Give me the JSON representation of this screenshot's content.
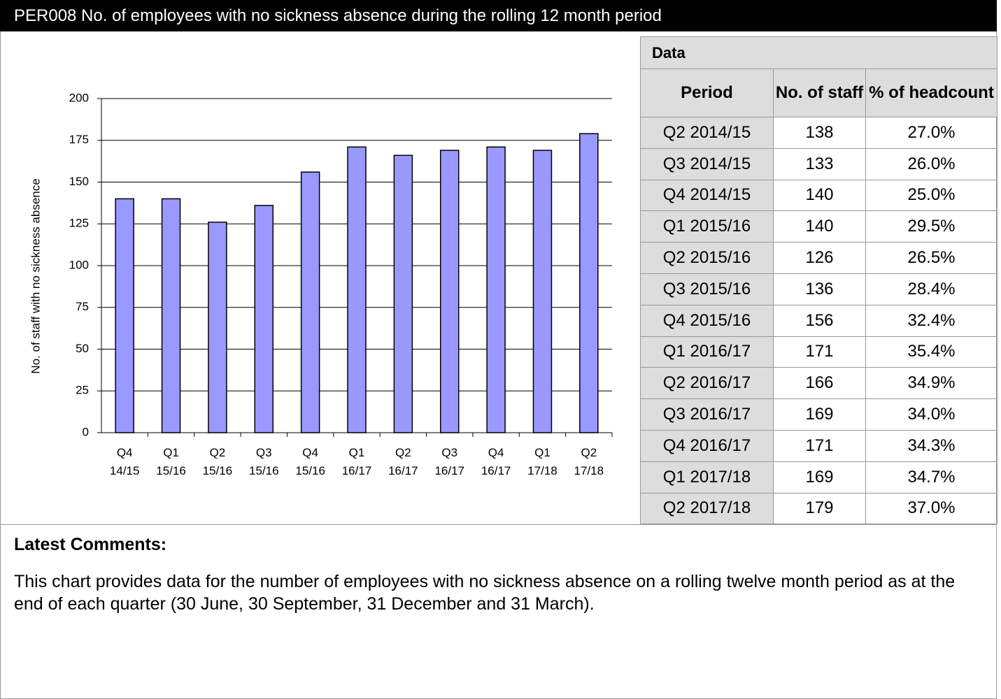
{
  "header": {
    "title": "PER008 No. of employees with no sickness absence during the rolling 12 month period"
  },
  "chart_data": {
    "type": "bar",
    "y_label": "No. of staff with no sickness absence",
    "categories": [
      [
        "Q4",
        "14/15"
      ],
      [
        "Q1",
        "15/16"
      ],
      [
        "Q2",
        "15/16"
      ],
      [
        "Q3",
        "15/16"
      ],
      [
        "Q4",
        "15/16"
      ],
      [
        "Q1",
        "16/17"
      ],
      [
        "Q2",
        "16/17"
      ],
      [
        "Q3",
        "16/17"
      ],
      [
        "Q4",
        "16/17"
      ],
      [
        "Q1",
        "17/18"
      ],
      [
        "Q2",
        "17/18"
      ]
    ],
    "values": [
      140,
      140,
      126,
      136,
      156,
      171,
      166,
      169,
      171,
      169,
      179
    ],
    "color": "#9999ff",
    "ylim": [
      0,
      200
    ],
    "yticks": [
      0,
      25,
      50,
      75,
      100,
      125,
      150,
      175,
      200
    ],
    "grid": true
  },
  "table": {
    "title": "Data",
    "headers": [
      "Period",
      "No. of staff",
      "% of headcount"
    ],
    "rows": [
      [
        "Q2 2014/15",
        138,
        "27.0%"
      ],
      [
        "Q3 2014/15",
        133,
        "26.0%"
      ],
      [
        "Q4 2014/15",
        140,
        "25.0%"
      ],
      [
        "Q1 2015/16",
        140,
        "29.5%"
      ],
      [
        "Q2 2015/16",
        126,
        "26.5%"
      ],
      [
        "Q3 2015/16",
        136,
        "28.4%"
      ],
      [
        "Q4 2015/16",
        156,
        "32.4%"
      ],
      [
        "Q1 2016/17",
        171,
        "35.4%"
      ],
      [
        "Q2 2016/17",
        166,
        "34.9%"
      ],
      [
        "Q3 2016/17",
        169,
        "34.0%"
      ],
      [
        "Q4 2016/17",
        171,
        "34.3%"
      ],
      [
        "Q1 2017/18",
        169,
        "34.7%"
      ],
      [
        "Q2 2017/18",
        179,
        "37.0%"
      ]
    ]
  },
  "comments": {
    "title": "Latest Comments:",
    "text": "This chart provides data for the number of employees with no sickness absence on a rolling twelve month period as at the end of each quarter (30 June, 30 September, 31 December and 31 March)."
  }
}
